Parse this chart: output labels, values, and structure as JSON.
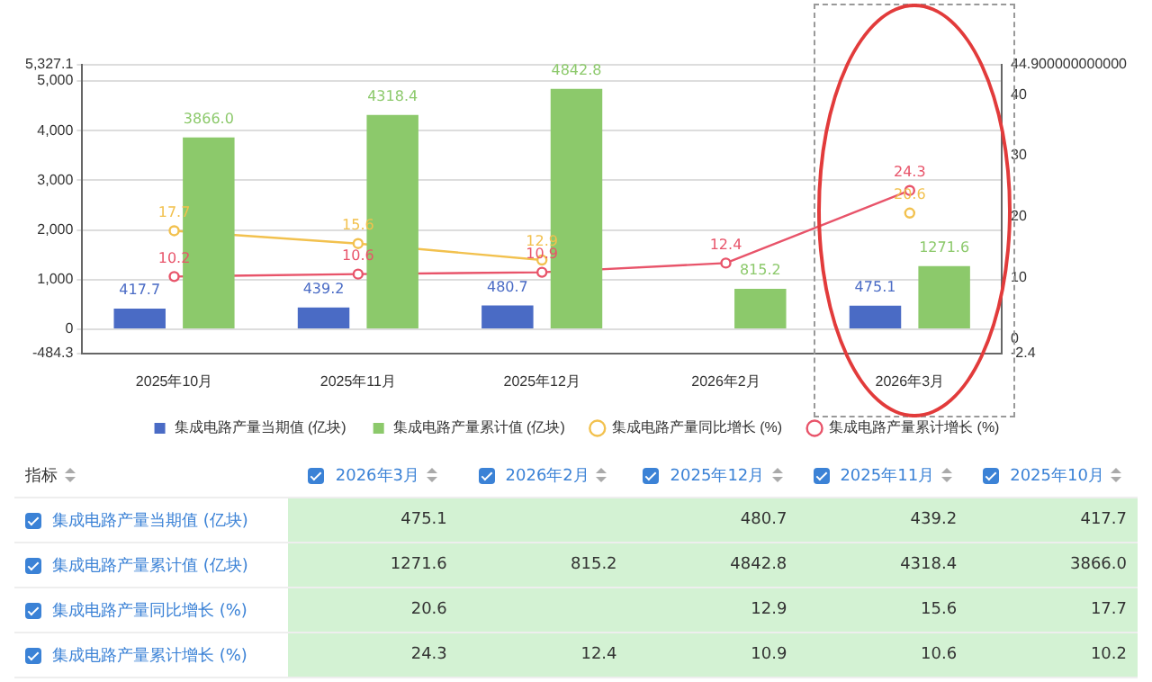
{
  "chart_data": {
    "type": "bar",
    "categories": [
      "2025年10月",
      "2025年11月",
      "2025年12月",
      "2026年2月",
      "2026年3月"
    ],
    "series": [
      {
        "name": "集成电路产量当期值 (亿块)",
        "color": "#4a6bc5",
        "values": [
          417.7,
          439.2,
          480.7,
          null,
          475.1
        ],
        "value_labels": [
          "417.7",
          "439.2",
          "480.7",
          null,
          "475.1"
        ]
      },
      {
        "name": "集成电路产量累计值 (亿块)",
        "color": "#8cc96b",
        "values": [
          3866.0,
          4318.4,
          4842.8,
          815.2,
          1271.6
        ],
        "value_labels": [
          "3866.0",
          "4318.4",
          "4842.8",
          "815.2",
          "1271.6"
        ]
      },
      {
        "name": "集成电路产量同比增长 (%)",
        "type": "line",
        "axis": "y2",
        "color": "#f2c14e",
        "values": [
          17.7,
          15.6,
          12.9,
          null,
          20.6
        ],
        "value_labels": [
          "17.7",
          "15.6",
          "12.9",
          null,
          "20.6"
        ]
      },
      {
        "name": "集成电路产量累计增长 (%)",
        "type": "line",
        "axis": "y2",
        "color": "#e8546a",
        "values": [
          10.2,
          10.6,
          10.9,
          12.4,
          24.3
        ],
        "value_labels": [
          "10.2",
          "10.6",
          "10.9",
          "12.4",
          "24.3"
        ]
      }
    ],
    "ylim": [
      -484.3,
      5327.1
    ],
    "yticks": [
      {
        "value": -484.3,
        "label": "-484.3"
      },
      0,
      {
        "value": 1000,
        "label": "1,000"
      },
      {
        "value": 2000,
        "label": "2,000"
      },
      {
        "value": 3000,
        "label": "3,000"
      },
      {
        "value": 4000,
        "label": "4,000"
      },
      {
        "value": 5000,
        "label": "5,000"
      },
      {
        "value": 5327.1,
        "label": "5,327.1"
      }
    ],
    "y2lim": [
      -2.4,
      44.9
    ],
    "y2ticks": [
      -2.4,
      0,
      10,
      20,
      30,
      40,
      {
        "value": 44.9,
        "label": "44.900000000000"
      }
    ],
    "grid": "y",
    "legend": "bottom",
    "marker": "circle",
    "line_style": "solid",
    "annotations": [
      "指标"
    ]
  }
}
